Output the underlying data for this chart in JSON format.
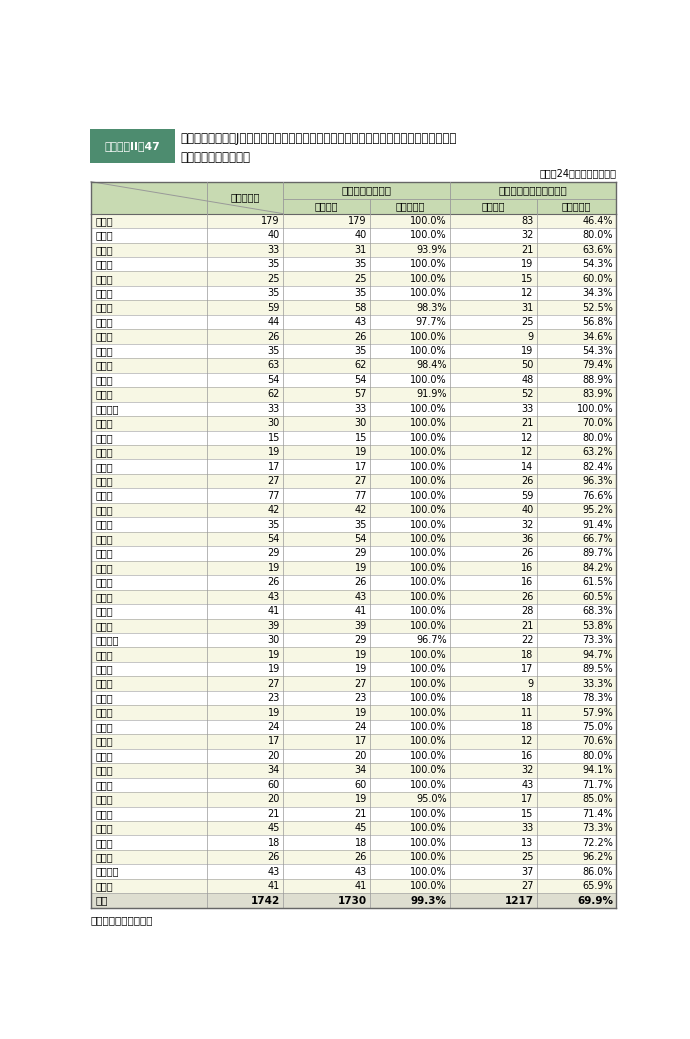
{
  "title_box": "附属資料II－47",
  "title_main": "受信機の整備及びJアラートによる自動起動が可能な情報伝達手段の保有に関する市町村\nの状況（都道府県別）",
  "date_note": "（平成24年６月１日現在）",
  "footer_note": "（備考）　消防庁調べ",
  "header_col1": "総市町村数",
  "header_group1": "受信機整備市町村",
  "header_group2": "自動起動が可能な市町村",
  "header_col2": "市町村数",
  "header_col3": "割合（％）",
  "header_col4": "市町村数",
  "header_col5": "割合（％）",
  "rows": [
    {
      "pref": "北海道",
      "total": 179,
      "n1": 179,
      "r1": "100.0%",
      "n2": 83,
      "r2": "46.4%"
    },
    {
      "pref": "青森県",
      "total": 40,
      "n1": 40,
      "r1": "100.0%",
      "n2": 32,
      "r2": "80.0%"
    },
    {
      "pref": "岩手県",
      "total": 33,
      "n1": 31,
      "r1": "93.9%",
      "n2": 21,
      "r2": "63.6%"
    },
    {
      "pref": "宮城県",
      "total": 35,
      "n1": 35,
      "r1": "100.0%",
      "n2": 19,
      "r2": "54.3%"
    },
    {
      "pref": "秋田県",
      "total": 25,
      "n1": 25,
      "r1": "100.0%",
      "n2": 15,
      "r2": "60.0%"
    },
    {
      "pref": "山形県",
      "total": 35,
      "n1": 35,
      "r1": "100.0%",
      "n2": 12,
      "r2": "34.3%"
    },
    {
      "pref": "福島県",
      "total": 59,
      "n1": 58,
      "r1": "98.3%",
      "n2": 31,
      "r2": "52.5%"
    },
    {
      "pref": "茨城県",
      "total": 44,
      "n1": 43,
      "r1": "97.7%",
      "n2": 25,
      "r2": "56.8%"
    },
    {
      "pref": "栃木県",
      "total": 26,
      "n1": 26,
      "r1": "100.0%",
      "n2": 9,
      "r2": "34.6%"
    },
    {
      "pref": "群馬県",
      "total": 35,
      "n1": 35,
      "r1": "100.0%",
      "n2": 19,
      "r2": "54.3%"
    },
    {
      "pref": "埼玉県",
      "total": 63,
      "n1": 62,
      "r1": "98.4%",
      "n2": 50,
      "r2": "79.4%"
    },
    {
      "pref": "千葉県",
      "total": 54,
      "n1": 54,
      "r1": "100.0%",
      "n2": 48,
      "r2": "88.9%"
    },
    {
      "pref": "東京都",
      "total": 62,
      "n1": 57,
      "r1": "91.9%",
      "n2": 52,
      "r2": "83.9%"
    },
    {
      "pref": "神奈川県",
      "total": 33,
      "n1": 33,
      "r1": "100.0%",
      "n2": 33,
      "r2": "100.0%"
    },
    {
      "pref": "新潟県",
      "total": 30,
      "n1": 30,
      "r1": "100.0%",
      "n2": 21,
      "r2": "70.0%"
    },
    {
      "pref": "富山県",
      "total": 15,
      "n1": 15,
      "r1": "100.0%",
      "n2": 12,
      "r2": "80.0%"
    },
    {
      "pref": "石川県",
      "total": 19,
      "n1": 19,
      "r1": "100.0%",
      "n2": 12,
      "r2": "63.2%"
    },
    {
      "pref": "福井県",
      "total": 17,
      "n1": 17,
      "r1": "100.0%",
      "n2": 14,
      "r2": "82.4%"
    },
    {
      "pref": "山梨県",
      "total": 27,
      "n1": 27,
      "r1": "100.0%",
      "n2": 26,
      "r2": "96.3%"
    },
    {
      "pref": "長野県",
      "total": 77,
      "n1": 77,
      "r1": "100.0%",
      "n2": 59,
      "r2": "76.6%"
    },
    {
      "pref": "岐阜県",
      "total": 42,
      "n1": 42,
      "r1": "100.0%",
      "n2": 40,
      "r2": "95.2%"
    },
    {
      "pref": "静岡県",
      "total": 35,
      "n1": 35,
      "r1": "100.0%",
      "n2": 32,
      "r2": "91.4%"
    },
    {
      "pref": "愛知県",
      "total": 54,
      "n1": 54,
      "r1": "100.0%",
      "n2": 36,
      "r2": "66.7%"
    },
    {
      "pref": "三重県",
      "total": 29,
      "n1": 29,
      "r1": "100.0%",
      "n2": 26,
      "r2": "89.7%"
    },
    {
      "pref": "滋賀県",
      "total": 19,
      "n1": 19,
      "r1": "100.0%",
      "n2": 16,
      "r2": "84.2%"
    },
    {
      "pref": "京都府",
      "total": 26,
      "n1": 26,
      "r1": "100.0%",
      "n2": 16,
      "r2": "61.5%"
    },
    {
      "pref": "大阪府",
      "total": 43,
      "n1": 43,
      "r1": "100.0%",
      "n2": 26,
      "r2": "60.5%"
    },
    {
      "pref": "兵庫県",
      "total": 41,
      "n1": 41,
      "r1": "100.0%",
      "n2": 28,
      "r2": "68.3%"
    },
    {
      "pref": "奈良県",
      "total": 39,
      "n1": 39,
      "r1": "100.0%",
      "n2": 21,
      "r2": "53.8%"
    },
    {
      "pref": "和歌山県",
      "total": 30,
      "n1": 29,
      "r1": "96.7%",
      "n2": 22,
      "r2": "73.3%"
    },
    {
      "pref": "鳥取県",
      "total": 19,
      "n1": 19,
      "r1": "100.0%",
      "n2": 18,
      "r2": "94.7%"
    },
    {
      "pref": "島根県",
      "total": 19,
      "n1": 19,
      "r1": "100.0%",
      "n2": 17,
      "r2": "89.5%"
    },
    {
      "pref": "岡山県",
      "total": 27,
      "n1": 27,
      "r1": "100.0%",
      "n2": 9,
      "r2": "33.3%"
    },
    {
      "pref": "広島県",
      "total": 23,
      "n1": 23,
      "r1": "100.0%",
      "n2": 18,
      "r2": "78.3%"
    },
    {
      "pref": "山口県",
      "total": 19,
      "n1": 19,
      "r1": "100.0%",
      "n2": 11,
      "r2": "57.9%"
    },
    {
      "pref": "徳島県",
      "total": 24,
      "n1": 24,
      "r1": "100.0%",
      "n2": 18,
      "r2": "75.0%"
    },
    {
      "pref": "香川県",
      "total": 17,
      "n1": 17,
      "r1": "100.0%",
      "n2": 12,
      "r2": "70.6%"
    },
    {
      "pref": "愛媛県",
      "total": 20,
      "n1": 20,
      "r1": "100.0%",
      "n2": 16,
      "r2": "80.0%"
    },
    {
      "pref": "高知県",
      "total": 34,
      "n1": 34,
      "r1": "100.0%",
      "n2": 32,
      "r2": "94.1%"
    },
    {
      "pref": "福岡県",
      "total": 60,
      "n1": 60,
      "r1": "100.0%",
      "n2": 43,
      "r2": "71.7%"
    },
    {
      "pref": "佐賀県",
      "total": 20,
      "n1": 19,
      "r1": "95.0%",
      "n2": 17,
      "r2": "85.0%"
    },
    {
      "pref": "長崎県",
      "total": 21,
      "n1": 21,
      "r1": "100.0%",
      "n2": 15,
      "r2": "71.4%"
    },
    {
      "pref": "熊本県",
      "total": 45,
      "n1": 45,
      "r1": "100.0%",
      "n2": 33,
      "r2": "73.3%"
    },
    {
      "pref": "大分県",
      "total": 18,
      "n1": 18,
      "r1": "100.0%",
      "n2": 13,
      "r2": "72.2%"
    },
    {
      "pref": "宮崎県",
      "total": 26,
      "n1": 26,
      "r1": "100.0%",
      "n2": 25,
      "r2": "96.2%"
    },
    {
      "pref": "鹿児島県",
      "total": 43,
      "n1": 43,
      "r1": "100.0%",
      "n2": 37,
      "r2": "86.0%"
    },
    {
      "pref": "沖縄県",
      "total": 41,
      "n1": 41,
      "r1": "100.0%",
      "n2": 27,
      "r2": "65.9%"
    },
    {
      "pref": "総計",
      "total": 1742,
      "n1": 1730,
      "r1": "99.3%",
      "n2": 1217,
      "r2": "69.9%"
    }
  ],
  "colors": {
    "title_box_bg": "#4d8c6f",
    "title_box_text": "#ffffff",
    "header_bg": "#c8dab2",
    "row_bg_odd": "#f7f7e4",
    "row_bg_even": "#ffffff",
    "total_row_bg": "#deded0",
    "border_color": "#999999",
    "border_dark": "#666666",
    "text_color": "#000000",
    "group_sep_color": "#7aaa8a"
  }
}
